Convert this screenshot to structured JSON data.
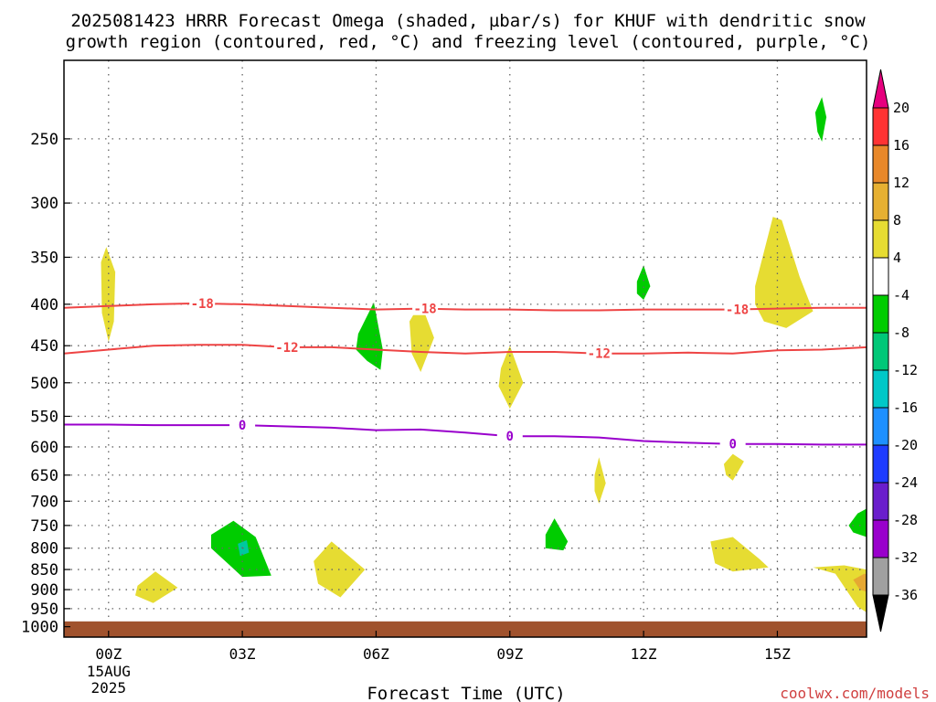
{
  "title_line1": "2025081423 HRRR Forecast Omega (shaded, µbar/s) for KHUF with dendritic snow",
  "title_line2": "growth region (contoured, red, °C) and freezing level (contoured, purple, °C)",
  "watermark": "coolwx.com/models",
  "chart_data": {
    "type": "heatmap",
    "title": "2025081423 HRRR Forecast Omega (shaded, µbar/s) for KHUF with dendritic snow growth region (contoured, red, °C) and freezing level (contoured, purple, °C)",
    "xlabel": "Forecast Time (UTC)",
    "ylabel": "",
    "x_range_hours": [
      -1.0,
      17.0
    ],
    "y_range_hPa": [
      1030,
      200
    ],
    "y_scale": "log",
    "grid": true,
    "x_ticks": [
      {
        "hour": 0,
        "label": "00Z",
        "date_line1": "15AUG",
        "date_line2": "2025"
      },
      {
        "hour": 3,
        "label": "03Z"
      },
      {
        "hour": 6,
        "label": "06Z"
      },
      {
        "hour": 9,
        "label": "09Z"
      },
      {
        "hour": 12,
        "label": "12Z"
      },
      {
        "hour": 15,
        "label": "15Z"
      }
    ],
    "y_ticks": [
      250,
      300,
      350,
      400,
      450,
      500,
      550,
      600,
      650,
      700,
      750,
      800,
      850,
      900,
      950,
      1000
    ],
    "ground_level_hPa": 985,
    "ground_color": "#a0522d",
    "contours": [
      {
        "label": "-18",
        "color": "#ee4444",
        "points": [
          [
            -1,
            404
          ],
          [
            0,
            402
          ],
          [
            1,
            400
          ],
          [
            2,
            399
          ],
          [
            3,
            400
          ],
          [
            4,
            402
          ],
          [
            5,
            404
          ],
          [
            6,
            406
          ],
          [
            7,
            405
          ],
          [
            8,
            406
          ],
          [
            9,
            406
          ],
          [
            10,
            407
          ],
          [
            11,
            407
          ],
          [
            12,
            406
          ],
          [
            13,
            406
          ],
          [
            14,
            406
          ],
          [
            15,
            405
          ],
          [
            16,
            404
          ],
          [
            17,
            404
          ]
        ],
        "label_hours": [
          2.1,
          7.1,
          14.1
        ]
      },
      {
        "label": "-12",
        "color": "#ee4444",
        "points": [
          [
            -1,
            460
          ],
          [
            0,
            455
          ],
          [
            1,
            450
          ],
          [
            2,
            449
          ],
          [
            3,
            449
          ],
          [
            4,
            452
          ],
          [
            5,
            452
          ],
          [
            6,
            455
          ],
          [
            7,
            458
          ],
          [
            8,
            460
          ],
          [
            9,
            458
          ],
          [
            10,
            458
          ],
          [
            11,
            460
          ],
          [
            12,
            460
          ],
          [
            13,
            459
          ],
          [
            14,
            460
          ],
          [
            15,
            456
          ],
          [
            16,
            455
          ],
          [
            17,
            452
          ]
        ],
        "label_hours": [
          4.0,
          11.0
        ]
      },
      {
        "label": "0",
        "color": "#9900cc",
        "points": [
          [
            -1,
            563
          ],
          [
            0,
            563
          ],
          [
            1,
            564
          ],
          [
            2,
            564
          ],
          [
            3,
            564
          ],
          [
            4,
            566
          ],
          [
            5,
            568
          ],
          [
            6,
            572
          ],
          [
            7,
            571
          ],
          [
            8,
            576
          ],
          [
            9,
            582
          ],
          [
            10,
            582
          ],
          [
            11,
            584
          ],
          [
            12,
            590
          ],
          [
            13,
            593
          ],
          [
            14,
            595
          ],
          [
            15,
            595
          ],
          [
            16,
            596
          ],
          [
            17,
            596
          ]
        ],
        "label_hours": [
          3.0,
          9.0,
          14.0
        ]
      }
    ],
    "omega_areas": [
      {
        "value_range": [
          4,
          8
        ],
        "color": "#e6dc32",
        "points": [
          [
            -0.05,
            340
          ],
          [
            0.15,
            365
          ],
          [
            0.12,
            420
          ],
          [
            0.0,
            445
          ],
          [
            -0.15,
            410
          ],
          [
            -0.17,
            355
          ]
        ]
      },
      {
        "value_range": [
          4,
          8
        ],
        "color": "#e6dc32",
        "points": [
          [
            0.65,
            890
          ],
          [
            1.05,
            855
          ],
          [
            1.55,
            895
          ],
          [
            1.0,
            935
          ],
          [
            0.6,
            915
          ]
        ]
      },
      {
        "value_range": [
          -8,
          -4
        ],
        "color": "#00cc00",
        "points": [
          [
            2.3,
            770
          ],
          [
            2.8,
            740
          ],
          [
            3.3,
            775
          ],
          [
            3.65,
            865
          ],
          [
            3.0,
            868
          ],
          [
            2.3,
            800
          ]
        ]
      },
      {
        "value_range": [
          -12,
          -8
        ],
        "color": "#00c8a0",
        "points": [
          [
            2.9,
            790
          ],
          [
            3.1,
            782
          ],
          [
            3.15,
            810
          ],
          [
            2.95,
            818
          ]
        ]
      },
      {
        "value_range": [
          4,
          8
        ],
        "color": "#e6dc32",
        "points": [
          [
            4.6,
            830
          ],
          [
            5.0,
            785
          ],
          [
            5.75,
            850
          ],
          [
            5.2,
            920
          ],
          [
            4.7,
            885
          ]
        ]
      },
      {
        "value_range": [
          -8,
          -4
        ],
        "color": "#00cc00",
        "points": [
          [
            5.6,
            435
          ],
          [
            5.95,
            398
          ],
          [
            6.15,
            455
          ],
          [
            6.1,
            482
          ],
          [
            5.8,
            470
          ],
          [
            5.55,
            455
          ]
        ]
      },
      {
        "value_range": [
          4,
          8
        ],
        "color": "#e6dc32",
        "points": [
          [
            6.75,
            420
          ],
          [
            7.0,
            398
          ],
          [
            7.3,
            440
          ],
          [
            7.0,
            485
          ],
          [
            6.8,
            460
          ]
        ]
      },
      {
        "value_range": [
          4,
          8
        ],
        "color": "#e6dc32",
        "points": [
          [
            8.8,
            480
          ],
          [
            9.0,
            450
          ],
          [
            9.3,
            500
          ],
          [
            9.0,
            538
          ],
          [
            8.75,
            505
          ]
        ]
      },
      {
        "value_range": [
          -8,
          -4
        ],
        "color": "#00cc00",
        "points": [
          [
            9.8,
            770
          ],
          [
            10.0,
            735
          ],
          [
            10.3,
            785
          ],
          [
            10.2,
            805
          ],
          [
            9.8,
            800
          ]
        ]
      },
      {
        "value_range": [
          4,
          8
        ],
        "color": "#e6dc32",
        "points": [
          [
            10.9,
            650
          ],
          [
            11.0,
            618
          ],
          [
            11.15,
            665
          ],
          [
            11.0,
            705
          ],
          [
            10.9,
            680
          ]
        ]
      },
      {
        "value_range": [
          -8,
          -4
        ],
        "color": "#00cc00",
        "points": [
          [
            11.85,
            375
          ],
          [
            12.0,
            358
          ],
          [
            12.15,
            380
          ],
          [
            12.0,
            395
          ],
          [
            11.85,
            388
          ]
        ]
      },
      {
        "value_range": [
          4,
          8
        ],
        "color": "#e6dc32",
        "points": [
          [
            13.8,
            630
          ],
          [
            14.0,
            612
          ],
          [
            14.25,
            625
          ],
          [
            14.0,
            660
          ],
          [
            13.85,
            650
          ]
        ]
      },
      {
        "value_range": [
          4,
          8
        ],
        "color": "#e6dc32",
        "points": [
          [
            13.5,
            785
          ],
          [
            14.0,
            775
          ],
          [
            14.6,
            825
          ],
          [
            14.8,
            845
          ],
          [
            14.0,
            855
          ],
          [
            13.6,
            835
          ]
        ]
      },
      {
        "value_range": [
          4,
          8
        ],
        "color": "#e6dc32",
        "points": [
          [
            14.5,
            380
          ],
          [
            14.9,
            312
          ],
          [
            15.1,
            315
          ],
          [
            15.5,
            370
          ],
          [
            15.8,
            408
          ],
          [
            15.2,
            428
          ],
          [
            14.7,
            420
          ],
          [
            14.5,
            400
          ]
        ]
      },
      {
        "value_range": [
          -8,
          -4
        ],
        "color": "#00cc00",
        "points": [
          [
            15.85,
            232
          ],
          [
            16.0,
            222
          ],
          [
            16.1,
            235
          ],
          [
            16.0,
            252
          ],
          [
            15.9,
            245
          ]
        ]
      },
      {
        "value_range": [
          -8,
          -4
        ],
        "color": "#00cc00",
        "points": [
          [
            16.6,
            750
          ],
          [
            16.8,
            725
          ],
          [
            17.0,
            715
          ],
          [
            17.0,
            775
          ],
          [
            16.7,
            765
          ]
        ]
      },
      {
        "value_range": [
          4,
          8
        ],
        "color": "#e6dc32",
        "points": [
          [
            15.8,
            845
          ],
          [
            16.5,
            840
          ],
          [
            17.0,
            850
          ],
          [
            17.0,
            960
          ],
          [
            16.8,
            945
          ],
          [
            16.3,
            860
          ]
        ]
      },
      {
        "value_range": [
          8,
          12
        ],
        "color": "#e6a832",
        "points": [
          [
            16.7,
            875
          ],
          [
            16.95,
            860
          ],
          [
            17.0,
            862
          ],
          [
            17.0,
            905
          ],
          [
            16.85,
            900
          ]
        ]
      }
    ],
    "colorbar": {
      "levels": [
        20,
        16,
        12,
        8,
        4,
        -4,
        -8,
        -12,
        -16,
        -20,
        -24,
        -28,
        -32,
        -36
      ],
      "colors": [
        "#ff3333",
        "#e8882a",
        "#e6b032",
        "#e6dc32",
        "#ffffff",
        "#00cc00",
        "#00c878",
        "#00c8c8",
        "#1e90ff",
        "#1e3cff",
        "#6a1ecc",
        "#9900cc",
        "#a0a0a0"
      ],
      "over_color": "#e6007e",
      "under_color": "#000000"
    }
  }
}
